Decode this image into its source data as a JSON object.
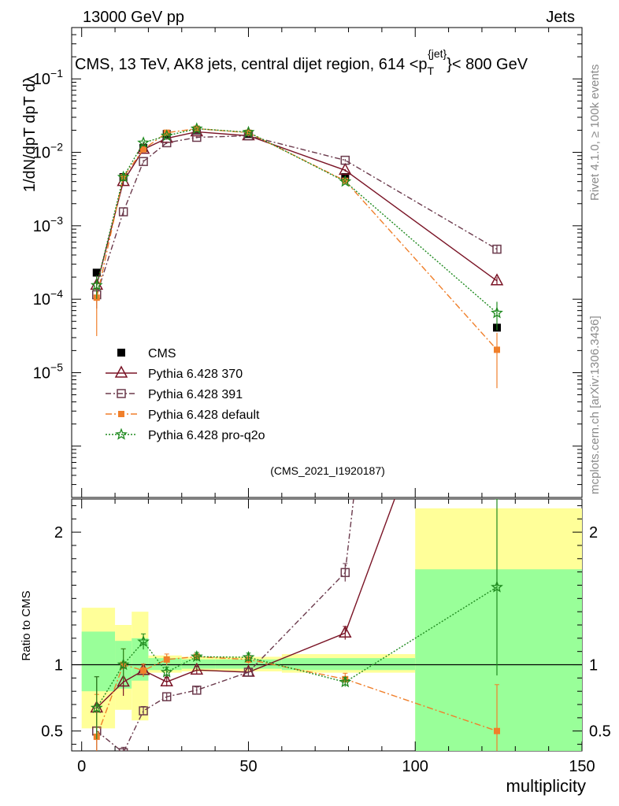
{
  "header": {
    "left": "13000 GeV pp",
    "right": "Jets"
  },
  "chart_data": {
    "type": "line",
    "title": "CMS, 13 TeV, AK8 jets, central dijet region, 614 <p",
    "title_sub": "T",
    "title_sup": "{jet}",
    "title_tail": "}< 800 GeV",
    "xlabel": "multiplicity",
    "ylabel_main": "1/dN/dpT dpT dλ",
    "ylabel_ratio": "Ratio to CMS",
    "xlim": [
      -3,
      150
    ],
    "ylim_main": [
      2e-07,
      0.5
    ],
    "ylim_ratio": [
      0.35,
      2.25
    ],
    "x_ticks": [
      "0",
      "50",
      "100",
      "150"
    ],
    "y_ticks_main": [
      "10^-5",
      "10^-4",
      "10^-3",
      "10^-2",
      "10^-1"
    ],
    "y_ticks_ratio": [
      "0.5",
      "1",
      "2"
    ],
    "bins": [
      {
        "lo": 0,
        "hi": 10,
        "x": 4.5
      },
      {
        "lo": 10,
        "hi": 15,
        "x": 12.5
      },
      {
        "lo": 15,
        "hi": 20,
        "x": 18.5
      },
      {
        "lo": 20,
        "hi": 30,
        "x": 25.5
      },
      {
        "lo": 30,
        "hi": 40,
        "x": 34.5
      },
      {
        "lo": 40,
        "hi": 60,
        "x": 50
      },
      {
        "lo": 60,
        "hi": 100,
        "x": 79
      },
      {
        "lo": 100,
        "hi": 150,
        "x": 124.5
      }
    ],
    "cms": {
      "name": "CMS",
      "values": [
        0.00023,
        0.0046,
        0.0115,
        0.0178,
        0.0198,
        0.0178,
        0.0046,
        4.1e-05
      ],
      "band_green": [
        [
          0.8,
          1.25
        ],
        [
          0.82,
          1.18
        ],
        [
          0.88,
          1.2
        ],
        [
          0.96,
          1.05
        ],
        [
          0.97,
          1.04
        ],
        [
          0.97,
          1.04
        ],
        [
          0.96,
          1.05
        ],
        [
          0.35,
          1.72
        ]
      ],
      "band_yellow": [
        [
          0.52,
          1.43
        ],
        [
          0.66,
          1.3
        ],
        [
          0.58,
          1.4
        ],
        [
          0.94,
          1.07
        ],
        [
          0.95,
          1.06
        ],
        [
          0.95,
          1.06
        ],
        [
          0.94,
          1.08
        ],
        [
          0.35,
          2.18
        ]
      ]
    },
    "series": [
      {
        "name": "Pythia 6.428 370",
        "color": "#7a1426",
        "values": [
          0.000155,
          0.004,
          0.011,
          0.0155,
          0.019,
          0.0168,
          0.0057,
          0.000178
        ],
        "err": [
          0.35,
          0.12,
          0.05,
          0.04,
          0.03,
          0.03,
          0.04,
          0.12
        ]
      },
      {
        "name": "Pythia 6.428 391",
        "color": "#6b3a4c",
        "values": [
          0.000115,
          0.00155,
          0.0075,
          0.0135,
          0.016,
          0.0168,
          0.0078,
          0.00048
        ],
        "err": [
          0.35,
          0.12,
          0.05,
          0.04,
          0.03,
          0.03,
          0.04,
          0.12
        ]
      },
      {
        "name": "Pythia 6.428 default",
        "color": "#f07f2a",
        "values": [
          0.000105,
          0.0046,
          0.011,
          0.0185,
          0.021,
          0.0185,
          0.0041,
          2.05e-05
        ],
        "err": [
          0.7,
          0.12,
          0.05,
          0.04,
          0.03,
          0.03,
          0.05,
          0.7
        ]
      },
      {
        "name": "Pythia 6.428 pro-q2o",
        "color": "#1f8a1f",
        "values": [
          0.000155,
          0.0046,
          0.0135,
          0.0168,
          0.021,
          0.0188,
          0.004,
          6.5e-05
        ],
        "err": [
          0.35,
          0.12,
          0.05,
          0.04,
          0.03,
          0.03,
          0.04,
          0.42
        ]
      }
    ],
    "legend": [
      "CMS",
      "Pythia 6.428 370",
      "Pythia 6.428 391",
      "Pythia 6.428 default",
      "Pythia 6.428 pro-q2o"
    ],
    "legend_position": "lower-left",
    "ref_label": "(CMS_2021_I1920187)"
  },
  "side_labels": {
    "rivet": "Rivet 4.1.0, ≥ 100k events",
    "mcplots": "mcplots.cern.ch [arXiv:1306.3436]"
  },
  "colors": {
    "cms": "#000000",
    "green_band": "#99ff99",
    "yellow_band": "#ffff99"
  }
}
